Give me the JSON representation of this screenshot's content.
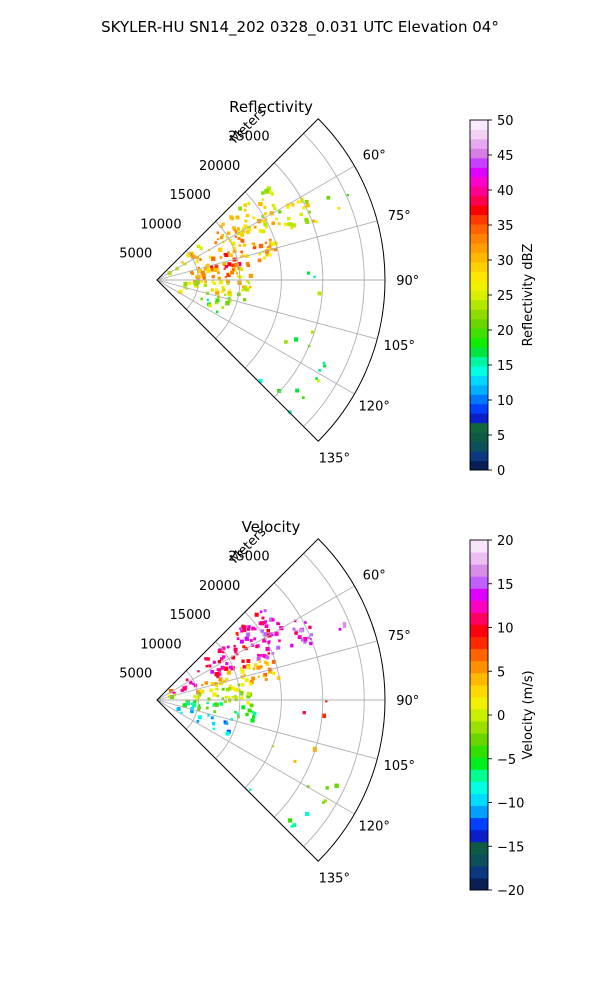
{
  "figure": {
    "title": "SKYLER-HU  SN14_202  0328_0.031 UTC Elevation 04°"
  },
  "chart_data": [
    {
      "type": "heatmap",
      "subtype": "polar-sector",
      "title": "Reflectivity",
      "range_label": "Meters",
      "range_ticks": [
        5000,
        10000,
        15000,
        20000,
        25000
      ],
      "range_tick_labels": [
        "5000",
        "10000",
        "15000",
        "20000",
        "25000"
      ],
      "azimuth_ticks": [
        60,
        75,
        90,
        105,
        120,
        135
      ],
      "azimuth_tick_labels": [
        "60°",
        "75°",
        "90°",
        "105°",
        "120°",
        "135°"
      ],
      "azimuth_range": [
        45,
        135
      ],
      "rmax": 27500,
      "grid": true,
      "colorbar": {
        "label": "Reflectivity dBZ",
        "range": [
          0,
          50
        ],
        "ticks": [
          0,
          5,
          10,
          15,
          20,
          25,
          30,
          35,
          40,
          45,
          50
        ],
        "tick_labels": [
          "0",
          "5",
          "10",
          "15",
          "20",
          "25",
          "30",
          "35",
          "40",
          "45",
          "50"
        ]
      },
      "features": [
        {
          "az": 68,
          "r": 14000,
          "value": 28
        },
        {
          "az": 72,
          "r": 10000,
          "value": 33
        },
        {
          "az": 78,
          "r": 6000,
          "value": 35
        },
        {
          "az": 85,
          "r": 3000,
          "value": 30
        },
        {
          "az": 95,
          "r": 6000,
          "value": 24
        },
        {
          "az": 108,
          "r": 8000,
          "value": 21
        },
        {
          "az": 120,
          "r": 22000,
          "value": 18
        },
        {
          "az": 132,
          "r": 21000,
          "value": 18
        }
      ]
    },
    {
      "type": "heatmap",
      "subtype": "polar-sector",
      "title": "Velocity",
      "range_label": "Meters",
      "range_ticks": [
        5000,
        10000,
        15000,
        20000,
        25000
      ],
      "range_tick_labels": [
        "5000",
        "10000",
        "15000",
        "20000",
        "25000"
      ],
      "azimuth_ticks": [
        60,
        75,
        90,
        105,
        120,
        135
      ],
      "azimuth_tick_labels": [
        "60°",
        "75°",
        "90°",
        "105°",
        "120°",
        "135°"
      ],
      "azimuth_range": [
        45,
        135
      ],
      "rmax": 27500,
      "grid": true,
      "colorbar": {
        "label": "Velocity (m/s)",
        "range": [
          -20,
          20
        ],
        "ticks": [
          -20,
          -15,
          -10,
          -5,
          0,
          5,
          10,
          15,
          20
        ],
        "tick_labels": [
          "−20",
          "−15",
          "−10",
          "−5",
          "0",
          "5",
          "10",
          "15",
          "20"
        ]
      },
      "features": [
        {
          "az": 66,
          "r": 15000,
          "value": 11
        },
        {
          "az": 75,
          "r": 9000,
          "value": 3
        },
        {
          "az": 85,
          "r": 5000,
          "value": 0
        },
        {
          "az": 100,
          "r": 6000,
          "value": -4
        },
        {
          "az": 110,
          "r": 9000,
          "value": -8
        },
        {
          "az": 118,
          "r": 21000,
          "value": -3
        },
        {
          "az": 132,
          "r": 21000,
          "value": -6
        }
      ]
    }
  ],
  "colors": {
    "reflectivity_scale": [
      "#081e55",
      "#0c3880",
      "#0b4f5a",
      "#0d5b45",
      "#12663e",
      "#0a1fc8",
      "#0040ff",
      "#0077ff",
      "#00b0ff",
      "#00d8ff",
      "#00ffe1",
      "#00f5a0",
      "#00e640",
      "#12ec00",
      "#40e000",
      "#6ad600",
      "#8fdc00",
      "#b4e800",
      "#d6f000",
      "#f0f000",
      "#ffe600",
      "#ffd000",
      "#ffb800",
      "#ff9e00",
      "#ff8200",
      "#ff6400",
      "#ff3a00",
      "#ff0000",
      "#ff0050",
      "#ff0090",
      "#ff00d0",
      "#e000ff",
      "#c640ff",
      "#d77de6",
      "#e6a8ee",
      "#f4d2f6",
      "#fbeaff"
    ],
    "velocity_scale": [
      "#081e55",
      "#0c3880",
      "#0b4f5a",
      "#0d5b45",
      "#0a1fc8",
      "#0040ff",
      "#00a0ff",
      "#00dcff",
      "#00ffe1",
      "#00ff90",
      "#00ee20",
      "#30e000",
      "#6ad600",
      "#9ce000",
      "#c8ee00",
      "#f0f000",
      "#ffd800",
      "#ffb800",
      "#ff9000",
      "#ff6400",
      "#ff2800",
      "#ff0010",
      "#ff0060",
      "#ff00c0",
      "#e000ff",
      "#c060ff",
      "#d88ee8",
      "#ecbef2",
      "#f8e4fb"
    ]
  }
}
